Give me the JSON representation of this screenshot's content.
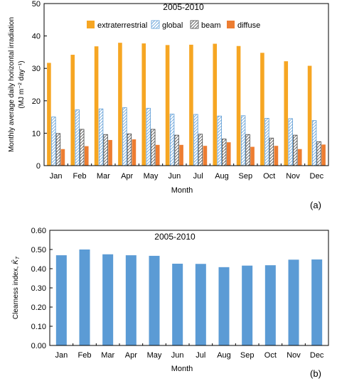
{
  "chart_data": [
    {
      "type": "bar",
      "title": "2005-2010",
      "panel_label": "(a)",
      "xlabel": "Month",
      "ylabel": "Monthly average daily horizontal irradiation",
      "ylabel_units": "(MJ m⁻² day⁻¹)",
      "ylim": [
        0,
        50
      ],
      "yticks": [
        "0",
        "10",
        "20",
        "30",
        "40",
        "50"
      ],
      "legend_position": "top-right",
      "grid": false,
      "categories": [
        "Jan",
        "Feb",
        "Mar",
        "Apr",
        "May",
        "Jun",
        "Jul",
        "Aug",
        "Sep",
        "Oct",
        "Nov",
        "Dec"
      ],
      "series": [
        {
          "name": "extraterrestrial",
          "color": "#f6a623",
          "pattern": "solid",
          "values": [
            31.7,
            34.2,
            36.8,
            37.9,
            37.7,
            37.2,
            37.3,
            37.6,
            36.9,
            34.8,
            32.2,
            30.8
          ]
        },
        {
          "name": "global",
          "color": "#5b9bd5",
          "pattern": "hatch-blue",
          "values": [
            15.0,
            17.2,
            17.5,
            17.9,
            17.7,
            15.9,
            15.8,
            15.3,
            15.4,
            14.6,
            14.5,
            13.9
          ]
        },
        {
          "name": "beam",
          "color": "#444444",
          "pattern": "hatch-black",
          "values": [
            9.9,
            11.2,
            9.6,
            9.8,
            11.2,
            9.4,
            9.7,
            8.2,
            9.6,
            8.5,
            9.4,
            7.4
          ]
        },
        {
          "name": "diffuse",
          "color": "#ed7d31",
          "pattern": "solid",
          "values": [
            5.1,
            6.0,
            7.9,
            8.1,
            6.4,
            6.4,
            6.1,
            7.2,
            5.8,
            6.1,
            5.1,
            6.5
          ]
        }
      ]
    },
    {
      "type": "bar",
      "title": "2005-2010",
      "panel_label": "(b)",
      "xlabel": "Month",
      "ylabel": "Clearness index,",
      "ylabel_symbol": "K̄",
      "ylabel_subscript": "T",
      "ylim": [
        0,
        0.6
      ],
      "yticks": [
        "0.00",
        "0.10",
        "0.20",
        "0.30",
        "0.40",
        "0.50",
        "0.60"
      ],
      "grid": false,
      "color": "#5b9bd5",
      "categories": [
        "Jan",
        "Feb",
        "Mar",
        "Apr",
        "May",
        "Jun",
        "Jul",
        "Aug",
        "Sep",
        "Oct",
        "Nov",
        "Dec"
      ],
      "values": [
        0.47,
        0.5,
        0.475,
        0.47,
        0.467,
        0.426,
        0.425,
        0.408,
        0.416,
        0.418,
        0.447,
        0.448
      ]
    }
  ]
}
